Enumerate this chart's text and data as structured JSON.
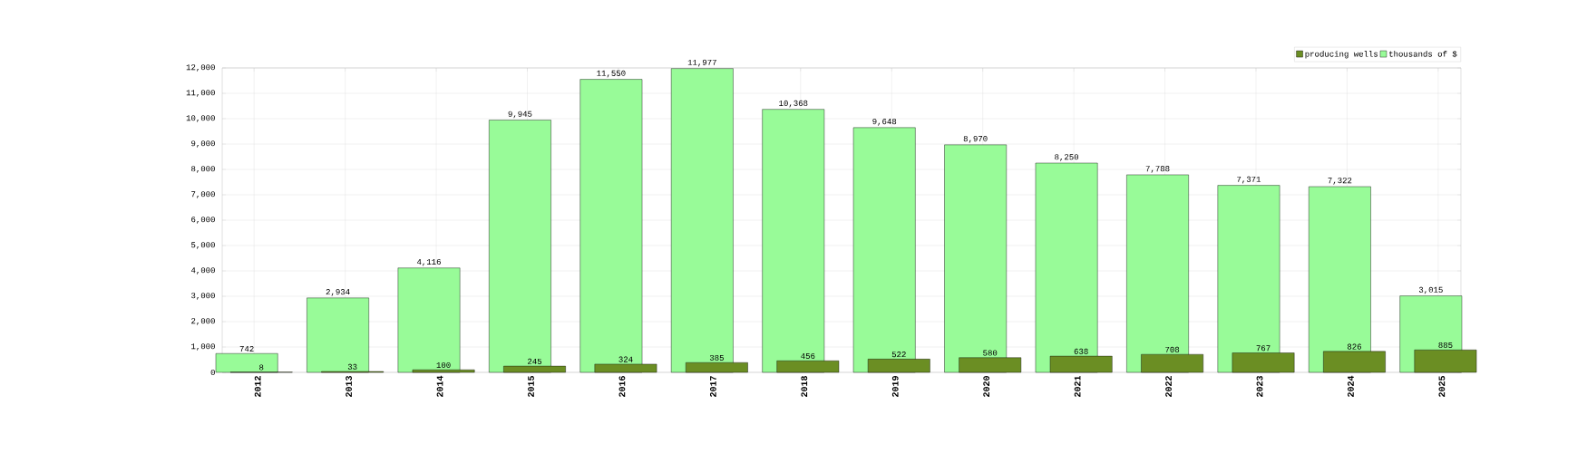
{
  "chart_data": {
    "type": "bar",
    "categories": [
      "2012",
      "2013",
      "2014",
      "2015",
      "2016",
      "2017",
      "2018",
      "2019",
      "2020",
      "2021",
      "2022",
      "2023",
      "2024",
      "2025"
    ],
    "series": [
      {
        "name": "producing wells",
        "color": "#6b8e23",
        "values": [
          8,
          33,
          100,
          245,
          324,
          385,
          456,
          522,
          580,
          638,
          708,
          767,
          826,
          885
        ],
        "value_labels": [
          "8",
          "33",
          "100",
          "245",
          "324",
          "385",
          "456",
          "522",
          "580",
          "638",
          "708",
          "767",
          "826",
          "885"
        ]
      },
      {
        "name": "thousands of $",
        "color": "#98fb98",
        "values": [
          742,
          2934,
          4116,
          9945,
          11550,
          11977,
          10368,
          9648,
          8970,
          8250,
          7788,
          7371,
          7322,
          3015
        ],
        "value_labels": [
          "742",
          "2,934",
          "4,116",
          "9,945",
          "11,550",
          "11,977",
          "10,368",
          "9,648",
          "8,970",
          "8,250",
          "7,788",
          "7,371",
          "7,322",
          "3,015"
        ]
      }
    ],
    "ylim": [
      0,
      12000
    ],
    "yticks": [
      0,
      {
        "value": 1000,
        "label": "1,000"
      },
      {
        "value": 2000,
        "label": "2,000"
      },
      {
        "value": 3000,
        "label": "3,000"
      },
      {
        "value": 4000,
        "label": "4,000"
      },
      {
        "value": 5000,
        "label": "5,000"
      },
      {
        "value": 6000,
        "label": "6,000"
      },
      {
        "value": 7000,
        "label": "7,000"
      },
      {
        "value": 8000,
        "label": "8,000"
      },
      {
        "value": 9000,
        "label": "9,000"
      },
      {
        "value": 10000,
        "label": "10,000"
      },
      {
        "value": 11000,
        "label": "11,000"
      },
      {
        "value": 12000,
        "label": "12,000"
      }
    ],
    "grid": true,
    "legend": "top right"
  }
}
